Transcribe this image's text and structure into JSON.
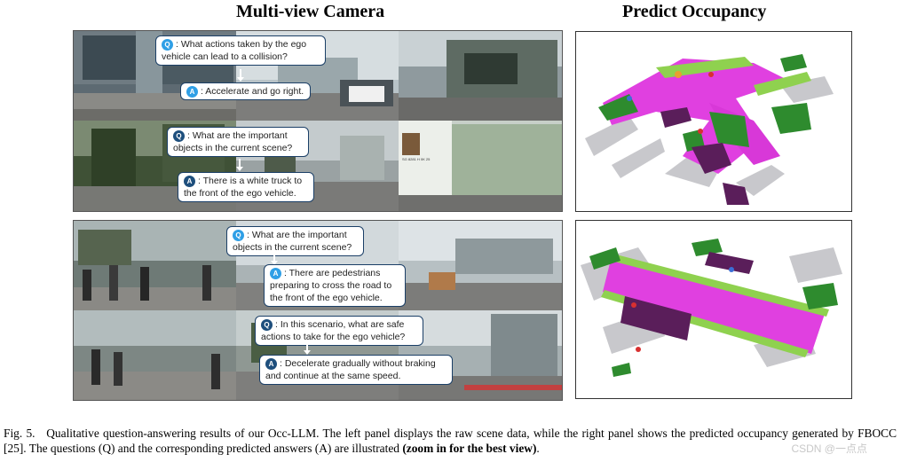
{
  "headings": {
    "left": "Multi-view Camera",
    "right": "Predict Occupancy"
  },
  "top_panel": {
    "q1": {
      "badge": "Q",
      "text": ": What actions taken by the ego vehicle can lead to a collision?"
    },
    "a1": {
      "badge": "A",
      "text": ": Accelerate and go right."
    },
    "q2": {
      "badge": "Q",
      "text": ": What are the important objects in the current scene?"
    },
    "a2": {
      "badge": "A",
      "text": ": There is a white truck to the front of the ego vehicle."
    },
    "truck_plate": "SG 8281 H 0K 25"
  },
  "bottom_panel": {
    "q1": {
      "badge": "Q",
      "text": ": What are the important objects in the current scene?"
    },
    "a1": {
      "badge": "A",
      "text": ": There are pedestrians preparing to cross the road to the front of the ego vehicle."
    },
    "q2": {
      "badge": "Q",
      "text": ": In this scenario, what are safe actions to take for the ego vehicle?"
    },
    "a2": {
      "badge": "A",
      "text": ": Decelerate gradually without braking and continue at the same speed."
    }
  },
  "caption": {
    "label": "Fig. 5.",
    "body": "Qualitative question-answering results of our Occ-LLM. The left panel displays the raw scene data, while the right panel shows the predicted occupancy generated by FBOCC [25]. The questions (Q) and the corresponding predicted answers (A) are illustrated ",
    "bold": "(zoom in for the best view)",
    "end": "."
  },
  "watermark": "CSDN @一点点",
  "colors": {
    "road": "#e040e0",
    "vegetation": "#2e8b2e",
    "sidewalk": "#5a1e5a",
    "terrain": "#8fd14f",
    "static": "#c8c8cc",
    "vehicle": "#e8a030",
    "bubble_border": "#1b3f67",
    "badge": "#2f9fe6"
  }
}
